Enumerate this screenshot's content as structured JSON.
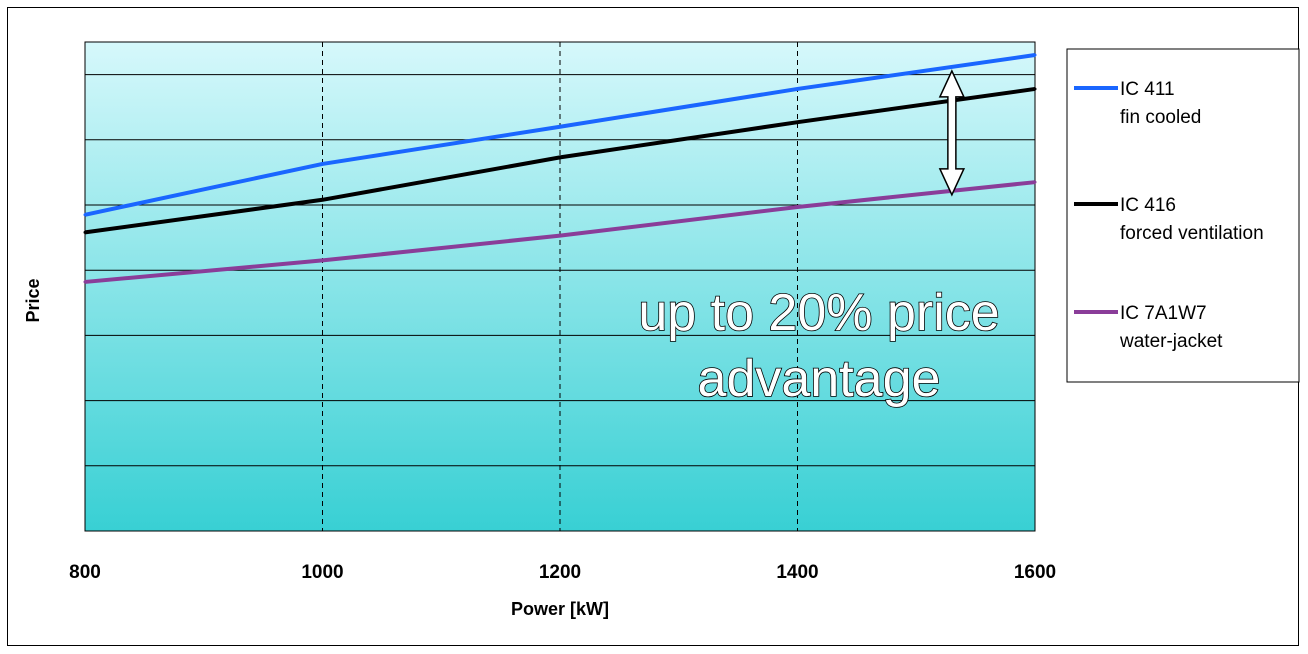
{
  "chart_data": {
    "type": "line",
    "title": "",
    "xlabel": "Power [kW]",
    "ylabel": "Price",
    "x": [
      800,
      1000,
      1200,
      1400,
      1600
    ],
    "xlim": [
      800,
      1600
    ],
    "x_ticks": [
      "800",
      "1000",
      "1200",
      "1400",
      "1600"
    ],
    "ylim": [
      0,
      7.5
    ],
    "y_gridlines": [
      1,
      2,
      3,
      4,
      5,
      6,
      7
    ],
    "y_tick_labels_shown": false,
    "grid": true,
    "legend_position": "right",
    "series": [
      {
        "name": "IC 411 fin cooled",
        "name_lines": [
          "IC 411",
          "fin cooled"
        ],
        "color": "#1a66ff",
        "values": [
          4.85,
          5.63,
          6.2,
          6.78,
          7.3
        ]
      },
      {
        "name": "IC 416 forced ventilation",
        "name_lines": [
          "IC 416",
          "forced ventilation"
        ],
        "color": "#000000",
        "values": [
          4.58,
          5.08,
          5.73,
          6.27,
          6.78
        ]
      },
      {
        "name": "IC 7A1W7 water-jacket",
        "name_lines": [
          "IC 7A1W7",
          "water-jacket"
        ],
        "color": "#8a3d99",
        "values": [
          3.82,
          4.15,
          4.53,
          4.97,
          5.35
        ]
      }
    ],
    "annotation": {
      "lines": [
        "up to 20% price",
        "advantage"
      ],
      "arrow_x": 1530,
      "arrow_from_series": "IC 411 fin cooled",
      "arrow_to_series": "IC 7A1W7 water-jacket"
    },
    "background_gradient": {
      "top": "#d6f8fb",
      "bottom": "#38d0d4"
    }
  }
}
